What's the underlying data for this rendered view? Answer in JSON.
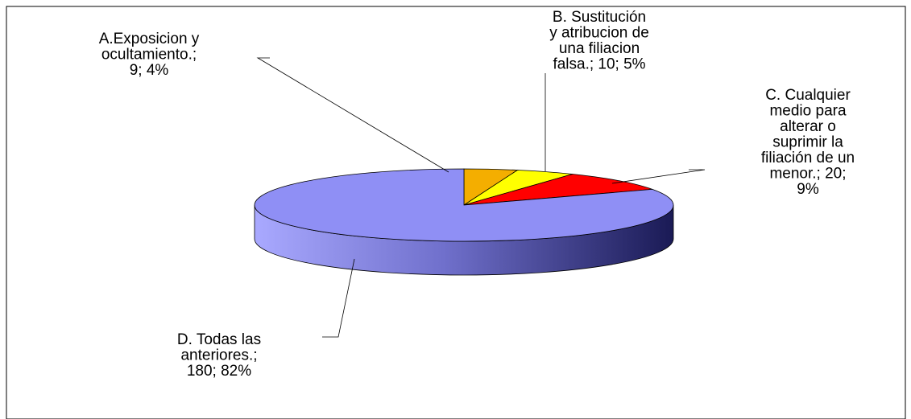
{
  "chart_data": {
    "type": "pie",
    "categories": [
      "A.Exposicion y ocultamiento.",
      "B. Sustitución y atribucion de una filiacion falsa.",
      "C. Cualquier medio para alterar o suprimir la filiación de un menor.",
      "D. Todas las anteriores."
    ],
    "values": [
      9,
      10,
      20,
      180
    ],
    "percents": [
      "4%",
      "5%",
      "9%",
      "82%"
    ],
    "colors": [
      "#f4ae00",
      "#ffff00",
      "#ff0000",
      "#8f8ff5"
    ],
    "labels": [
      [
        "A.Exposicion y",
        "ocultamiento.;",
        "9; 4%"
      ],
      [
        "B. Sustitución",
        "y atribucion de",
        "una filiacion",
        "falsa.; 10; 5%"
      ],
      [
        "C. Cualquier",
        "medio para",
        "alterar o",
        "suprimir la",
        "filiación de un",
        "menor.; 20;",
        "9%"
      ],
      [
        "D. Todas las",
        "anteriores.;",
        "180; 82%"
      ]
    ],
    "style": "3d-pie"
  }
}
